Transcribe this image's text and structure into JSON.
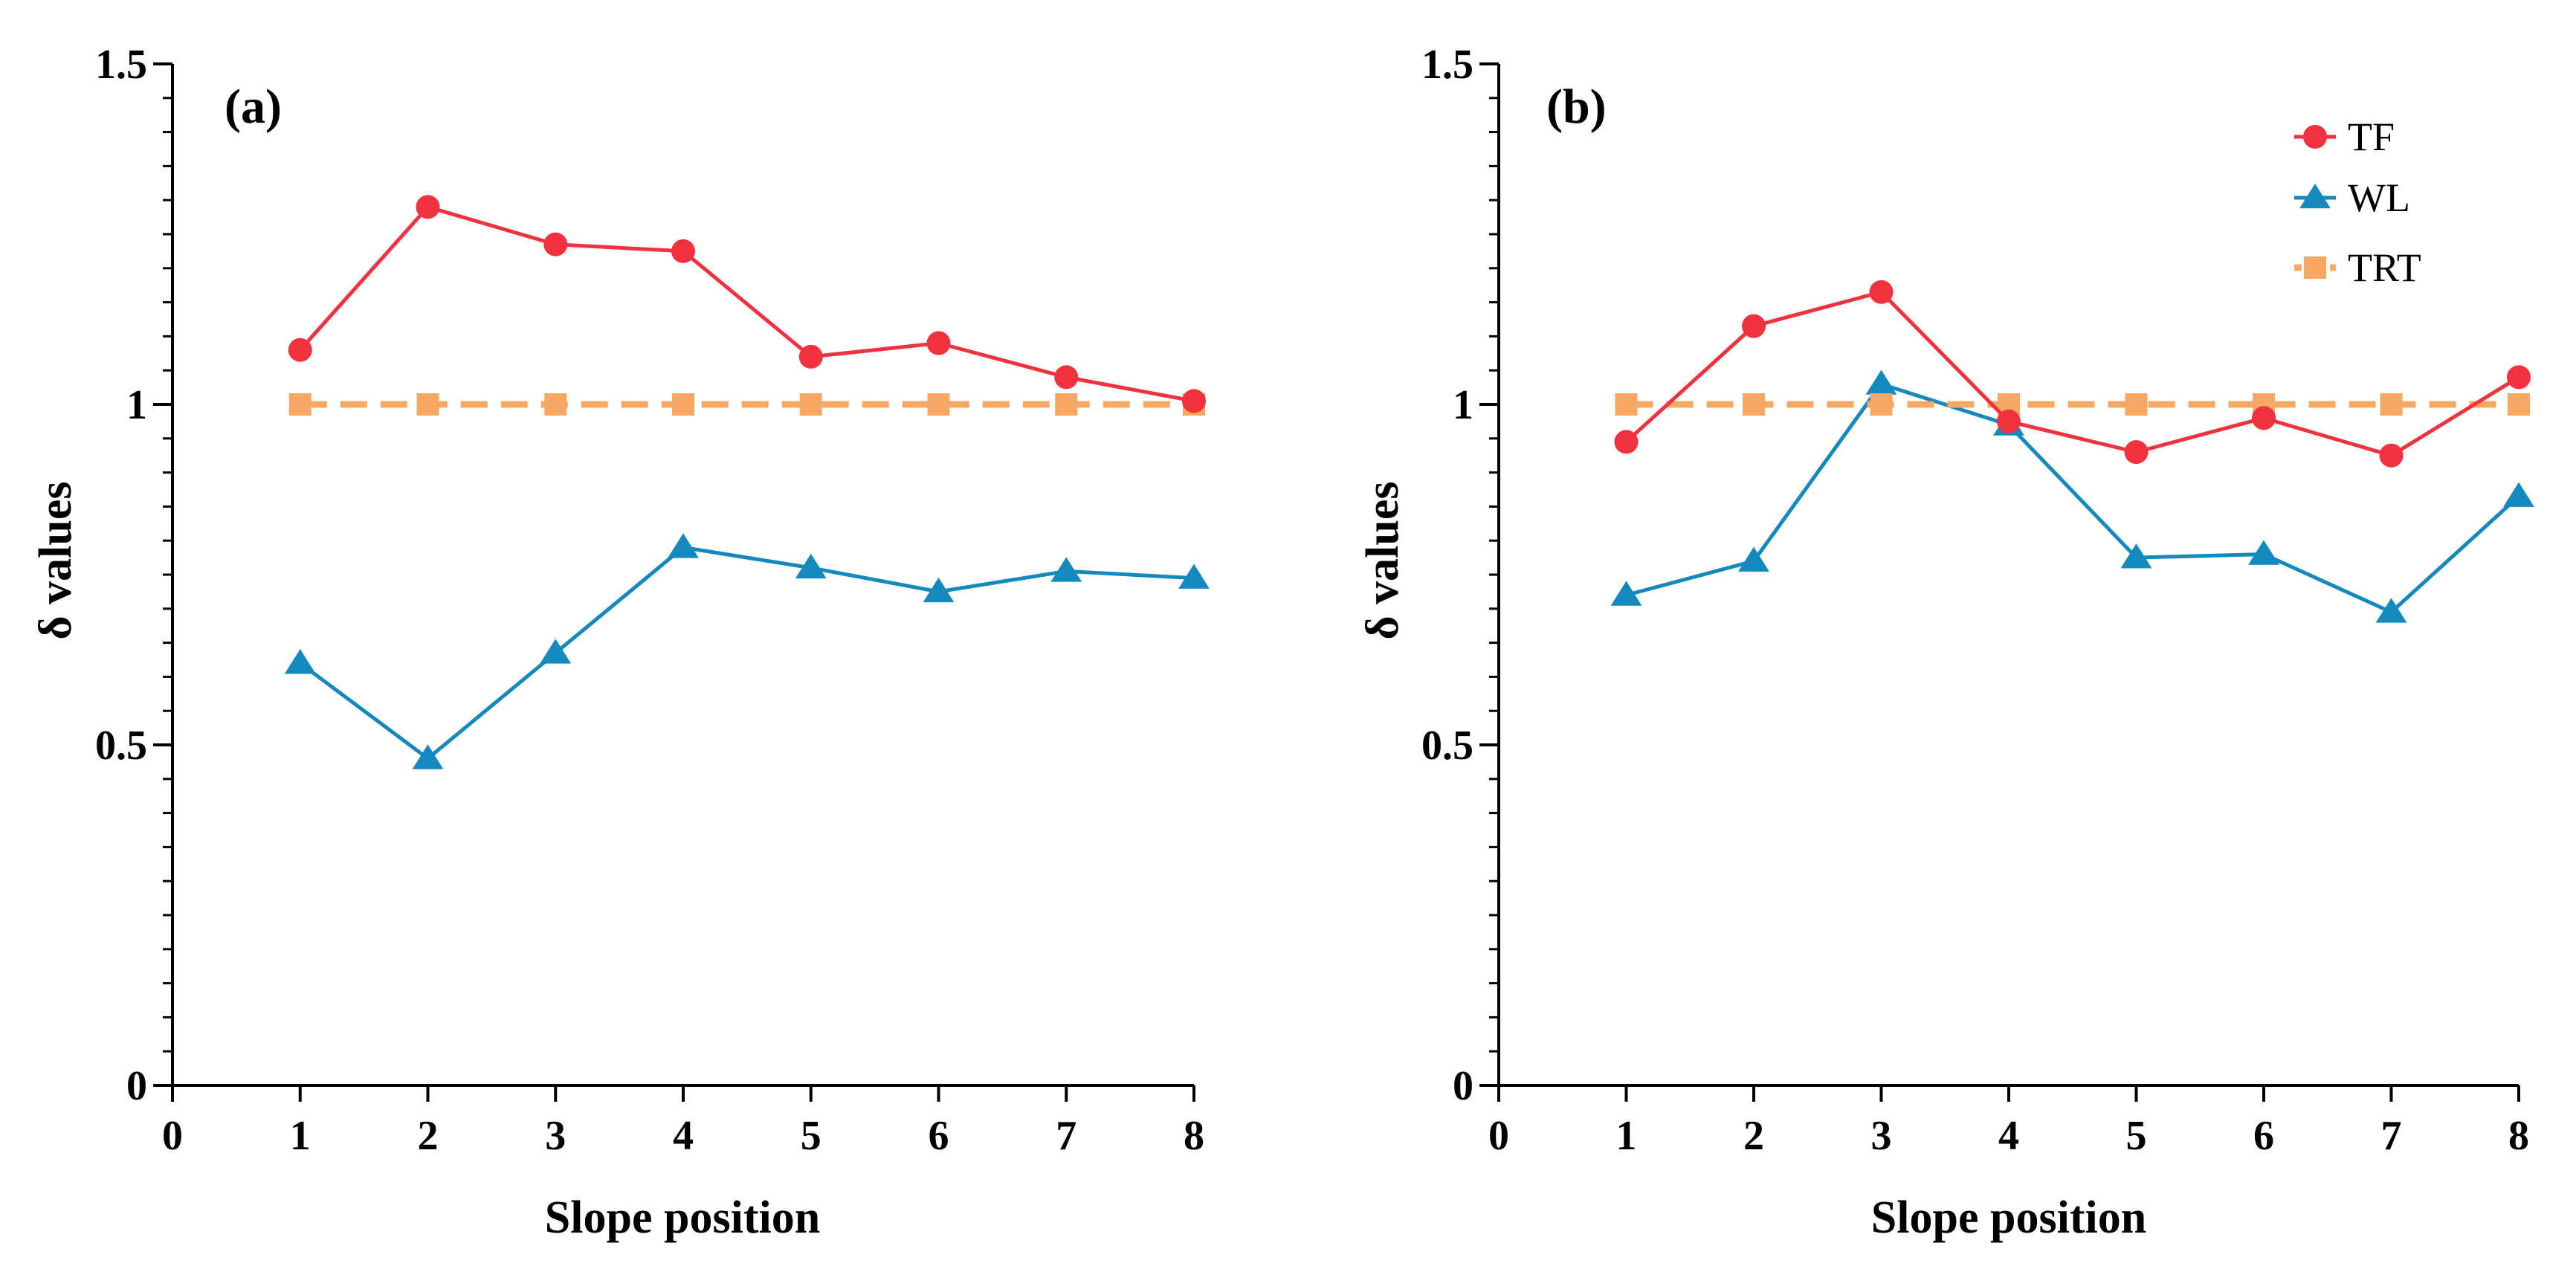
{
  "chart_data": [
    {
      "type": "line",
      "panel_label": "(a)",
      "xlabel": "Slope position",
      "ylabel": "δ values",
      "xlim": [
        0,
        8
      ],
      "ylim": [
        0,
        1.5
      ],
      "x_ticks": [
        "0",
        "1",
        "2",
        "3",
        "4",
        "5",
        "6",
        "7",
        "8"
      ],
      "y_ticks": [
        "0",
        "0.5",
        "1",
        "1.5"
      ],
      "x": [
        1,
        2,
        3,
        4,
        5,
        6,
        7,
        8
      ],
      "legend": false,
      "series": [
        {
          "name": "TF",
          "values": [
            1.08,
            1.29,
            1.235,
            1.225,
            1.07,
            1.09,
            1.04,
            1.005
          ],
          "color": "#f0323f",
          "marker": "circle",
          "dashed": false
        },
        {
          "name": "WL",
          "values": [
            0.62,
            0.48,
            0.635,
            0.79,
            0.76,
            0.725,
            0.755,
            0.745
          ],
          "color": "#1489bd",
          "marker": "triangle",
          "dashed": false
        },
        {
          "name": "TRT",
          "values": [
            1,
            1,
            1,
            1,
            1,
            1,
            1,
            1
          ],
          "color": "#f7a863",
          "marker": "square",
          "dashed": true
        }
      ]
    },
    {
      "type": "line",
      "panel_label": "(b)",
      "xlabel": "Slope position",
      "ylabel": "δ values",
      "xlim": [
        0,
        8
      ],
      "ylim": [
        0,
        1.5
      ],
      "x_ticks": [
        "0",
        "1",
        "2",
        "3",
        "4",
        "5",
        "6",
        "7",
        "8"
      ],
      "y_ticks": [
        "0",
        "0.5",
        "1",
        "1.5"
      ],
      "x": [
        1,
        2,
        3,
        4,
        5,
        6,
        7,
        8
      ],
      "legend": true,
      "legend_position": "top-right",
      "series": [
        {
          "name": "TF",
          "values": [
            0.945,
            1.115,
            1.165,
            0.975,
            0.93,
            0.98,
            0.925,
            1.04
          ],
          "color": "#f0323f",
          "marker": "circle",
          "dashed": false
        },
        {
          "name": "WL",
          "values": [
            0.72,
            0.77,
            1.03,
            0.97,
            0.775,
            0.78,
            0.695,
            0.865
          ],
          "color": "#1489bd",
          "marker": "triangle",
          "dashed": false
        },
        {
          "name": "TRT",
          "values": [
            1,
            1,
            1,
            1,
            1,
            1,
            1,
            1
          ],
          "color": "#f7a863",
          "marker": "square",
          "dashed": true
        }
      ]
    }
  ]
}
